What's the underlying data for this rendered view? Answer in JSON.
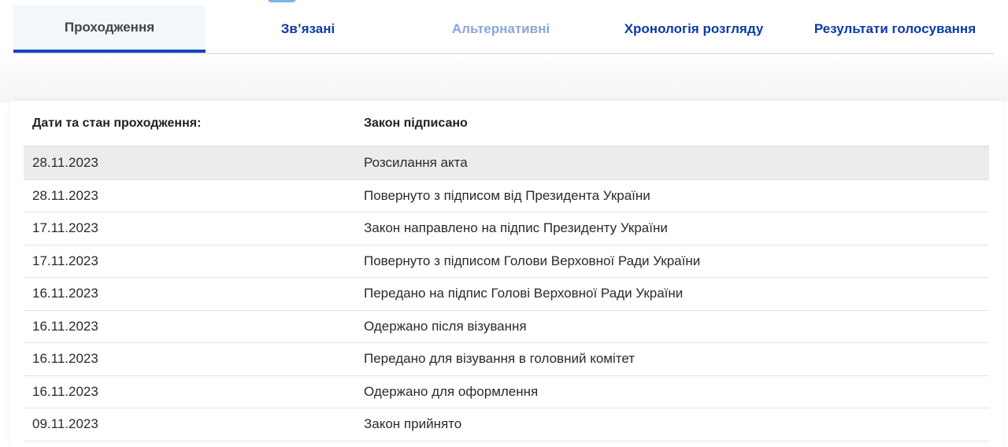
{
  "tabs": [
    {
      "label": "Проходження",
      "state": "active"
    },
    {
      "label": "Зв’язані",
      "state": "normal"
    },
    {
      "label": "Альтернативні",
      "state": "disabled"
    },
    {
      "label": "Хронологія розгляду",
      "state": "normal"
    },
    {
      "label": "Результати голосування",
      "state": "normal"
    }
  ],
  "table": {
    "header_label": "Дати та стан проходження:",
    "header_status": "Закон підписано",
    "rows": [
      {
        "date": "28.11.2023",
        "event": "Розсилання акта"
      },
      {
        "date": "28.11.2023",
        "event": "Повернуто з підписом від Президента України"
      },
      {
        "date": "17.11.2023",
        "event": "Закон направлено на підпис Президенту України"
      },
      {
        "date": "17.11.2023",
        "event": "Повернуто з підписом Голови Верховної Ради України"
      },
      {
        "date": "16.11.2023",
        "event": "Передано на підпис Голові Верховної Ради України"
      },
      {
        "date": "16.11.2023",
        "event": "Одержано після візування"
      },
      {
        "date": "16.11.2023",
        "event": "Передано для візування в головний комітет"
      },
      {
        "date": "16.11.2023",
        "event": "Одержано для оформлення"
      },
      {
        "date": "09.11.2023",
        "event": "Закон прийнято"
      }
    ]
  },
  "colors": {
    "accent": "#0d47b8",
    "tab_text": "#0d3aa9",
    "tab_disabled": "#8aa5dc",
    "highlight_row": "#ececec"
  }
}
